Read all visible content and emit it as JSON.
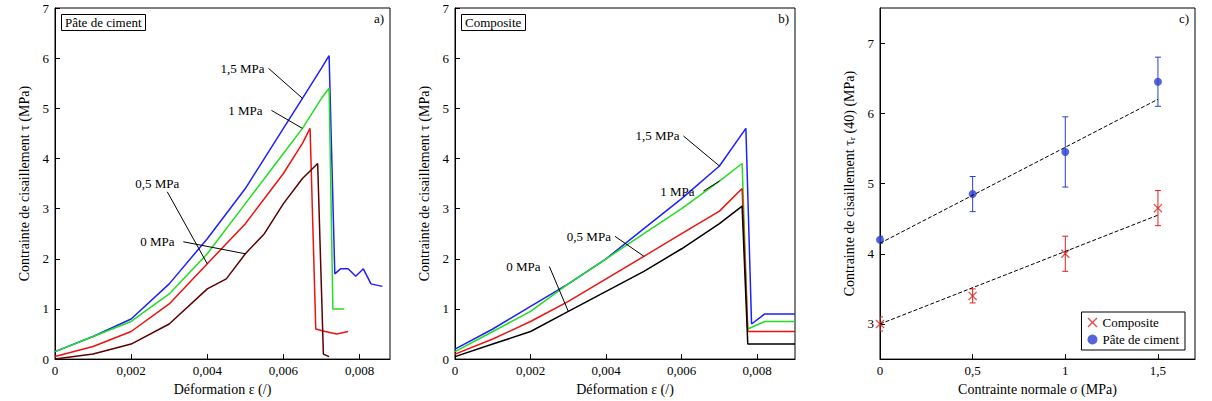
{
  "chart_data": [
    {
      "type": "line",
      "title": "Pâte de ciment",
      "annotations": [
        "a)"
      ],
      "x_label": "Déformation ε (/)",
      "y_label": "Contrainte de cisaillement τ (MPa)",
      "xlim": [
        0,
        0.0088
      ],
      "xticks": [
        0,
        {
          "value": 0.002,
          "label": "0,002"
        },
        {
          "value": 0.004,
          "label": "0,004"
        },
        {
          "value": 0.006,
          "label": "0,006"
        },
        {
          "value": 0.008,
          "label": "0,008"
        }
      ],
      "ylim": [
        0,
        7
      ],
      "yticks": [
        0,
        1,
        2,
        3,
        4,
        5,
        6,
        7
      ],
      "grid": false,
      "series": [
        {
          "name": "1,5 MPa",
          "color": "#1f1fff",
          "x": [
            0,
            0.001,
            0.002,
            0.003,
            0.004,
            0.005,
            0.006,
            0.0065,
            0.007,
            0.0072,
            0.00735,
            0.0075,
            0.0077,
            0.0079,
            0.0081,
            0.0083,
            0.0086
          ],
          "values": [
            0.15,
            0.45,
            0.8,
            1.5,
            2.4,
            3.4,
            4.6,
            5.2,
            5.8,
            6.05,
            1.7,
            1.8,
            1.8,
            1.65,
            1.8,
            1.5,
            1.45
          ]
        },
        {
          "name": "1 MPa",
          "color": "#22dd22",
          "x": [
            0,
            0.001,
            0.002,
            0.003,
            0.004,
            0.005,
            0.006,
            0.0065,
            0.007,
            0.0072,
            0.0073,
            0.0076
          ],
          "values": [
            0.15,
            0.45,
            0.75,
            1.3,
            2.1,
            3.1,
            4.1,
            4.6,
            5.2,
            5.4,
            1.0,
            1.0
          ]
        },
        {
          "name": "0,5 MPa",
          "color": "#ee1111",
          "x": [
            0,
            0.001,
            0.002,
            0.003,
            0.004,
            0.005,
            0.006,
            0.0065,
            0.0067,
            0.00685,
            0.0071,
            0.0074,
            0.0077
          ],
          "values": [
            0.05,
            0.25,
            0.55,
            1.1,
            1.9,
            2.7,
            3.7,
            4.3,
            4.6,
            0.6,
            0.55,
            0.5,
            0.55
          ]
        },
        {
          "name": "0 MPa",
          "color": "#5c0000",
          "x": [
            0,
            0.001,
            0.002,
            0.003,
            0.004,
            0.0045,
            0.005,
            0.0055,
            0.006,
            0.0065,
            0.0069,
            0.00705,
            0.0072
          ],
          "values": [
            0,
            0.1,
            0.3,
            0.7,
            1.4,
            1.6,
            2.1,
            2.5,
            3.1,
            3.6,
            3.9,
            0.1,
            0.05
          ]
        }
      ]
    },
    {
      "type": "line",
      "title": "Composite",
      "annotations": [
        "b)"
      ],
      "x_label": "Déformation ε (/)",
      "y_label": "Contrainte de cisaillement τ (MPa)",
      "xlim": [
        0,
        0.009
      ],
      "xticks": [
        0,
        {
          "value": 0.002,
          "label": "0,002"
        },
        {
          "value": 0.004,
          "label": "0,004"
        },
        {
          "value": 0.006,
          "label": "0,006"
        },
        {
          "value": 0.008,
          "label": "0,008"
        }
      ],
      "ylim": [
        0,
        7
      ],
      "yticks": [
        0,
        1,
        2,
        3,
        4,
        5,
        6,
        7
      ],
      "grid": false,
      "series": [
        {
          "name": "1,5 MPa",
          "color": "#1f1fff",
          "x": [
            0,
            0.001,
            0.002,
            0.003,
            0.004,
            0.005,
            0.006,
            0.007,
            0.0077,
            0.00785,
            0.0082,
            0.009
          ],
          "values": [
            0.2,
            0.6,
            1.05,
            1.5,
            2.0,
            2.6,
            3.2,
            3.85,
            4.6,
            0.7,
            0.9,
            0.9
          ]
        },
        {
          "name": "1 MPa",
          "color": "#22dd22",
          "x": [
            0,
            0.001,
            0.002,
            0.003,
            0.004,
            0.005,
            0.006,
            0.007,
            0.0076,
            0.00775,
            0.0082,
            0.009
          ],
          "values": [
            0.15,
            0.55,
            0.95,
            1.5,
            2.0,
            2.5,
            3.0,
            3.55,
            3.9,
            0.6,
            0.75,
            0.75
          ]
        },
        {
          "name": "0,5 MPa",
          "color": "#ee1111",
          "x": [
            0,
            0.001,
            0.002,
            0.003,
            0.004,
            0.005,
            0.006,
            0.007,
            0.0076,
            0.00775,
            0.0082,
            0.009
          ],
          "values": [
            0.1,
            0.4,
            0.75,
            1.15,
            1.6,
            2.05,
            2.5,
            2.95,
            3.4,
            0.55,
            0.55,
            0.55
          ]
        },
        {
          "name": "0 MPa",
          "color": "#000000",
          "x": [
            0,
            0.001,
            0.002,
            0.003,
            0.004,
            0.005,
            0.006,
            0.007,
            0.0076,
            0.00775,
            0.0082,
            0.009
          ],
          "values": [
            0.05,
            0.3,
            0.55,
            0.95,
            1.35,
            1.75,
            2.2,
            2.7,
            3.05,
            0.3,
            0.3,
            0.3
          ]
        }
      ]
    },
    {
      "type": "scatter",
      "annotations": [
        "c)"
      ],
      "x_label": "Contrainte normale σ (MPa)",
      "y_label": "Contrainte de cisaillement τᵣ (40) (MPa)",
      "xlim": [
        0,
        1.7
      ],
      "xticks": [
        0,
        {
          "value": 0.5,
          "label": "0,5"
        },
        1,
        {
          "value": 1.5,
          "label": "1,5"
        }
      ],
      "ylim": [
        2.5,
        7.5
      ],
      "yticks": [
        3,
        4,
        5,
        6,
        7
      ],
      "grid": false,
      "legend": "lower right",
      "x": [
        0,
        0.5,
        1,
        1.5
      ],
      "series": [
        {
          "name": "Composite",
          "color": "#e02020",
          "marker": "x",
          "values": [
            3.0,
            3.4,
            4.0,
            4.65
          ],
          "errors": [
            0.1,
            0.1,
            0.25,
            0.25
          ]
        },
        {
          "name": "Pâte de ciment",
          "color": "#2a3fcf",
          "marker": "circle",
          "values": [
            4.2,
            4.85,
            5.45,
            6.45
          ],
          "errors": [
            0.05,
            0.25,
            0.5,
            0.35
          ]
        }
      ],
      "trend_lines": [
        {
          "color": "#000000",
          "line_style": "dashed",
          "x": [
            0,
            1.5
          ],
          "values": [
            4.15,
            6.2
          ]
        },
        {
          "color": "#000000",
          "line_style": "dashed",
          "x": [
            0,
            1.5
          ],
          "values": [
            3.0,
            4.55
          ]
        }
      ]
    }
  ]
}
